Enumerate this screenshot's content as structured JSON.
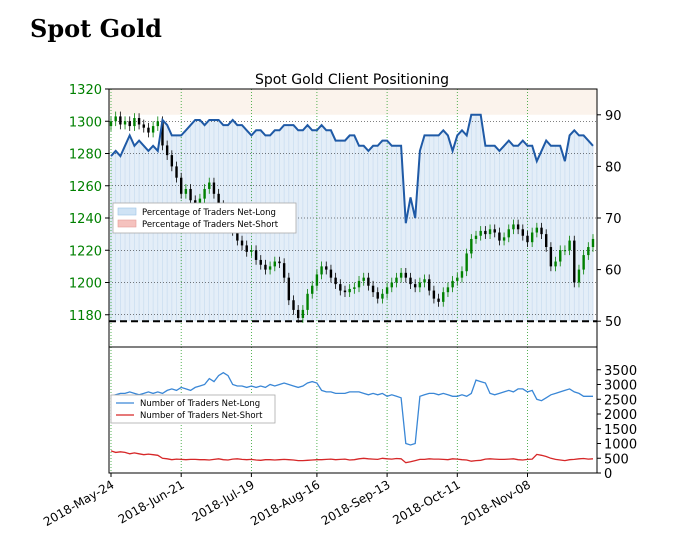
{
  "page": {
    "title": "Spot Gold"
  },
  "chart_data": [
    {
      "type": "candlestick_line",
      "title": "Spot Gold Client Positioning",
      "price_axis": {
        "side": "left",
        "ylim": [
          1160,
          1320
        ],
        "ticks": [
          1180,
          1200,
          1220,
          1240,
          1260,
          1280,
          1300,
          1320
        ],
        "color": "#008000"
      },
      "percent_axis": {
        "side": "right",
        "ylim": [
          45,
          95
        ],
        "ticks": [
          50,
          60,
          70,
          80,
          90
        ]
      },
      "legend": {
        "position": "center-left",
        "entries": [
          "Percentage of Traders Net-Long",
          "Percentage of Traders Net-Short"
        ]
      },
      "reference_line": {
        "percent": 50,
        "style": "dashed",
        "color": "#000000"
      },
      "x_ticks": [
        "2018-May-24",
        "2018-Jun-21",
        "2018-Jul-19",
        "2018-Aug-16",
        "2018-Sep-13",
        "2018-Oct-11",
        "2018-Nov-08"
      ],
      "series": [
        {
          "name": "Percentage of Traders Net-Long",
          "color": "#1f5aa6",
          "fill": "#dbe9f6",
          "values": [
            82,
            83,
            82,
            84,
            86,
            84,
            85,
            84,
            83,
            84,
            83,
            89,
            88,
            86,
            86,
            86,
            87,
            88,
            89,
            89,
            88,
            89,
            89,
            89,
            88,
            88,
            89,
            88,
            88,
            87,
            86,
            87,
            87,
            86,
            86,
            87,
            87,
            88,
            88,
            88,
            87,
            87,
            88,
            87,
            87,
            88,
            87,
            87,
            85,
            85,
            85,
            86,
            86,
            84,
            84,
            83,
            84,
            84,
            85,
            85,
            84,
            84,
            84,
            69,
            74,
            70,
            83,
            86,
            86,
            86,
            86,
            87,
            86,
            83,
            86,
            87,
            86,
            90,
            90,
            90,
            84,
            84,
            84,
            83,
            84,
            85,
            84,
            84,
            85,
            84,
            84,
            81,
            83,
            85,
            84,
            84,
            84,
            81,
            86,
            87,
            86,
            86,
            85,
            84
          ]
        },
        {
          "name": "Spot Gold",
          "type": "candlestick",
          "close": [
            1300,
            1303,
            1298,
            1300,
            1297,
            1302,
            1298,
            1296,
            1293,
            1297,
            1300,
            1285,
            1279,
            1272,
            1265,
            1255,
            1258,
            1251,
            1247,
            1252,
            1258,
            1262,
            1255,
            1248,
            1240,
            1238,
            1232,
            1226,
            1223,
            1219,
            1220,
            1214,
            1211,
            1208,
            1210,
            1213,
            1212,
            1203,
            1189,
            1183,
            1178,
            1183,
            1193,
            1198,
            1205,
            1210,
            1208,
            1203,
            1199,
            1195,
            1194,
            1196,
            1197,
            1201,
            1203,
            1198,
            1194,
            1190,
            1193,
            1197,
            1200,
            1203,
            1206,
            1203,
            1199,
            1197,
            1200,
            1202,
            1195,
            1190,
            1188,
            1194,
            1197,
            1201,
            1203,
            1207,
            1218,
            1227,
            1229,
            1232,
            1230,
            1233,
            1231,
            1226,
            1228,
            1233,
            1236,
            1233,
            1229,
            1225,
            1231,
            1234,
            1230,
            1222,
            1210,
            1213,
            1220,
            1220,
            1226,
            1200,
            1208,
            1217,
            1222,
            1227
          ]
        }
      ]
    },
    {
      "type": "line",
      "y_axis": {
        "side": "right",
        "ylim": [
          0,
          4000
        ],
        "ticks": [
          0,
          500,
          1000,
          1500,
          2000,
          2500,
          3000,
          3500
        ]
      },
      "legend": {
        "position": "center-left",
        "entries": [
          "Number of Traders Net-Long",
          "Number of Traders Net-Short"
        ]
      },
      "series": [
        {
          "name": "Number of Traders Net-Long",
          "color": "#3a87d6",
          "values": [
            2600,
            2650,
            2700,
            2700,
            2750,
            2700,
            2650,
            2700,
            2750,
            2700,
            2750,
            2700,
            2800,
            2850,
            2800,
            2900,
            2850,
            2800,
            2900,
            2950,
            3000,
            3200,
            3100,
            3300,
            3400,
            3300,
            3000,
            2950,
            2950,
            2900,
            2950,
            2900,
            2950,
            2900,
            3000,
            2950,
            3000,
            3050,
            3000,
            2950,
            2900,
            2950,
            3050,
            3100,
            3050,
            2800,
            2750,
            2750,
            2700,
            2700,
            2700,
            2750,
            2750,
            2750,
            2700,
            2650,
            2700,
            2650,
            2700,
            2600,
            2650,
            2600,
            2550,
            1000,
            950,
            1000,
            2600,
            2650,
            2700,
            2700,
            2650,
            2700,
            2650,
            2600,
            2600,
            2650,
            2600,
            2700,
            3150,
            3100,
            3050,
            2700,
            2650,
            2700,
            2750,
            2800,
            2750,
            2850,
            2850,
            2750,
            2800,
            2500,
            2450,
            2550,
            2650,
            2700,
            2750,
            2800,
            2850,
            2750,
            2700,
            2600,
            2600,
            2600
          ]
        },
        {
          "name": "Number of Traders Net-Short",
          "color": "#d62728",
          "values": [
            750,
            700,
            720,
            700,
            650,
            680,
            650,
            620,
            640,
            620,
            600,
            500,
            480,
            450,
            470,
            460,
            450,
            460,
            460,
            450,
            450,
            440,
            460,
            480,
            450,
            440,
            470,
            480,
            460,
            450,
            460,
            440,
            430,
            450,
            450,
            440,
            450,
            460,
            450,
            440,
            420,
            420,
            430,
            440,
            450,
            450,
            460,
            470,
            450,
            460,
            470,
            440,
            450,
            480,
            500,
            480,
            470,
            460,
            500,
            480,
            470,
            490,
            480,
            350,
            380,
            420,
            460,
            460,
            480,
            470,
            470,
            460,
            450,
            480,
            470,
            450,
            440,
            400,
            420,
            430,
            470,
            480,
            470,
            460,
            460,
            470,
            480,
            450,
            440,
            460,
            470,
            630,
            600,
            560,
            500,
            460,
            440,
            420,
            450,
            460,
            480,
            490,
            470,
            480
          ]
        }
      ]
    }
  ]
}
